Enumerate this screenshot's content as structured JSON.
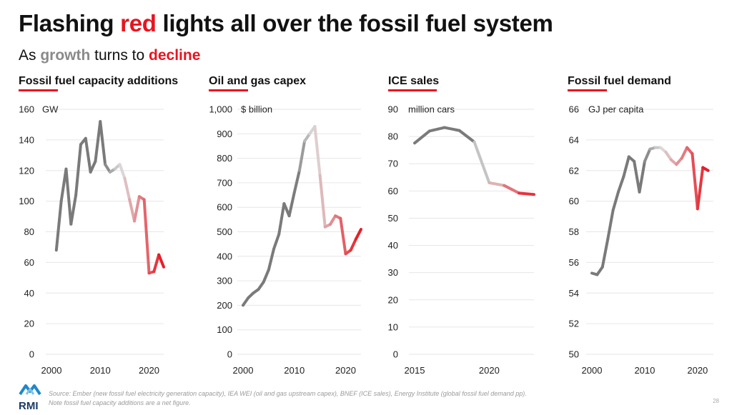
{
  "title": {
    "pre": "Flashing ",
    "red": "red",
    "post": " lights all over the fossil fuel system"
  },
  "subtitle": {
    "pre": "As ",
    "growth": "growth",
    "mid": " turns to ",
    "decline": "decline"
  },
  "colors": {
    "accent_red": "#e8141f",
    "grey": "#7a7a7a",
    "light": "#dddddd",
    "underline": "#e8141f"
  },
  "chart_data": [
    {
      "type": "line",
      "title": "Fossil fuel capacity additions",
      "unit": "GW",
      "ylim": [
        0,
        160
      ],
      "yticks": [
        0,
        20,
        40,
        60,
        80,
        100,
        120,
        140,
        160
      ],
      "ytick_labels": [
        "0",
        "20",
        "40",
        "60",
        "80",
        "100",
        "120",
        "140",
        "160"
      ],
      "xlim": [
        2000,
        2023
      ],
      "xticks": [
        2000,
        2010,
        2020
      ],
      "x": [
        2001,
        2002,
        2003,
        2004,
        2005,
        2006,
        2007,
        2008,
        2009,
        2010,
        2011,
        2012,
        2013,
        2014,
        2015,
        2016,
        2017,
        2018,
        2019,
        2020,
        2021,
        2022,
        2023
      ],
      "y": [
        68,
        100,
        121,
        85,
        104,
        137,
        141,
        119,
        126,
        152,
        124,
        119,
        121,
        124,
        115,
        101,
        87,
        103,
        101,
        53,
        54,
        65,
        57
      ],
      "grid": true
    },
    {
      "type": "line",
      "title": "Oil and gas capex",
      "unit": "$ billion",
      "ylim": [
        0,
        1000
      ],
      "yticks": [
        0,
        100,
        200,
        300,
        400,
        500,
        600,
        700,
        800,
        900,
        1000
      ],
      "ytick_labels": [
        "0",
        "100",
        "200",
        "300",
        "400",
        "500",
        "600",
        "700",
        "800",
        "900",
        "1,000"
      ],
      "xlim": [
        2000,
        2023
      ],
      "xticks": [
        2000,
        2010,
        2020
      ],
      "x": [
        2000,
        2001,
        2002,
        2003,
        2004,
        2005,
        2006,
        2007,
        2008,
        2009,
        2010,
        2011,
        2012,
        2013,
        2014,
        2015,
        2016,
        2017,
        2018,
        2019,
        2020,
        2021,
        2022,
        2023
      ],
      "y": [
        200,
        230,
        250,
        265,
        295,
        345,
        430,
        490,
        615,
        565,
        660,
        750,
        870,
        900,
        930,
        730,
        520,
        530,
        565,
        555,
        410,
        425,
        470,
        510
      ],
      "grid": true
    },
    {
      "type": "line",
      "title": "ICE sales",
      "unit": "million cars",
      "ylim": [
        0,
        90
      ],
      "yticks": [
        0,
        10,
        20,
        30,
        40,
        50,
        60,
        70,
        80,
        90
      ],
      "ytick_labels": [
        "0",
        "10",
        "20",
        "30",
        "40",
        "50",
        "60",
        "70",
        "80",
        "90"
      ],
      "xlim": [
        2015,
        2023
      ],
      "xticks": [
        2015,
        2020
      ],
      "x": [
        2015,
        2016,
        2017,
        2018,
        2019,
        2020,
        2021,
        2022,
        2023
      ],
      "y": [
        77.6,
        82,
        83.3,
        82.2,
        78,
        63,
        62,
        59.2,
        58.7
      ],
      "grid": true
    },
    {
      "type": "line",
      "title": "Fossil fuel demand",
      "unit": "GJ per capita",
      "ylim": [
        50,
        66
      ],
      "yticks": [
        50,
        52,
        54,
        56,
        58,
        60,
        62,
        64,
        66
      ],
      "ytick_labels": [
        "50",
        "52",
        "54",
        "56",
        "58",
        "60",
        "62",
        "64",
        "66"
      ],
      "xlim": [
        2000,
        2023
      ],
      "xticks": [
        2000,
        2010,
        2020
      ],
      "x": [
        2000,
        2001,
        2002,
        2003,
        2004,
        2005,
        2006,
        2007,
        2008,
        2009,
        2010,
        2011,
        2012,
        2013,
        2014,
        2015,
        2016,
        2017,
        2018,
        2019,
        2020,
        2021,
        2022
      ],
      "y": [
        55.3,
        55.2,
        55.7,
        57.5,
        59.4,
        60.6,
        61.6,
        62.9,
        62.6,
        60.6,
        62.6,
        63.4,
        63.5,
        63.5,
        63.2,
        62.7,
        62.4,
        62.8,
        63.5,
        63.1,
        59.5,
        62.2,
        62.0
      ],
      "grid": true
    }
  ],
  "source_line1": "Source: Ember (new fossil fuel electricity generation capacity), IEA WEI (oil and gas upstream capex), BNEF (ICE sales), Energy Institute (global fossil fuel demand pp).",
  "source_line2": "Note fossil fuel capacity additions are a net figure.",
  "logo_text": "RMI",
  "page_number": "28"
}
